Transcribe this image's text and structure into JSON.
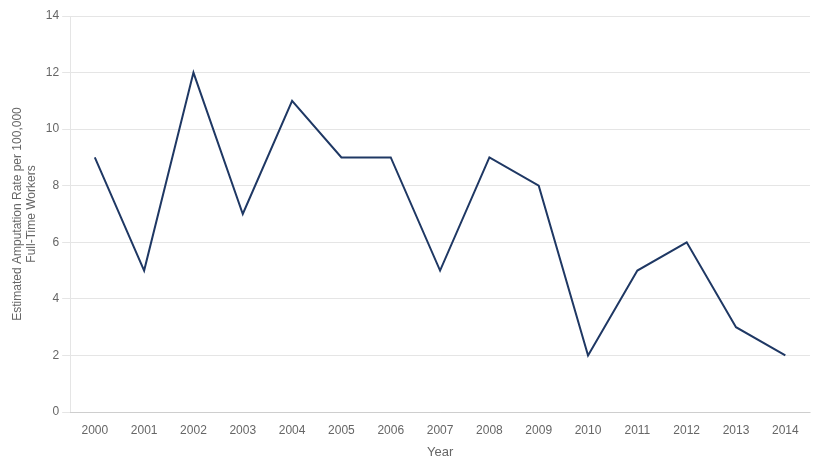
{
  "chart_data": {
    "type": "line",
    "x": [
      2000,
      2001,
      2002,
      2003,
      2004,
      2005,
      2006,
      2007,
      2008,
      2009,
      2010,
      2011,
      2012,
      2013,
      2014
    ],
    "values": [
      9,
      5,
      12,
      7,
      11,
      9,
      9,
      5,
      9,
      8,
      2,
      5,
      6,
      3,
      2
    ],
    "color": "#1F3864",
    "xlabel": "Year",
    "ylabel": "Estimated Amputation Rate per 100,000\nFull-Time Workers",
    "xlim": [
      1999.5,
      2014.5
    ],
    "xticks": [
      2000,
      2001,
      2002,
      2003,
      2004,
      2005,
      2006,
      2007,
      2008,
      2009,
      2010,
      2011,
      2012,
      2013,
      2014
    ],
    "ylim": [
      0,
      14
    ],
    "yticks": [
      0,
      2,
      4,
      6,
      8,
      10,
      12,
      14
    ],
    "grid": "y"
  }
}
